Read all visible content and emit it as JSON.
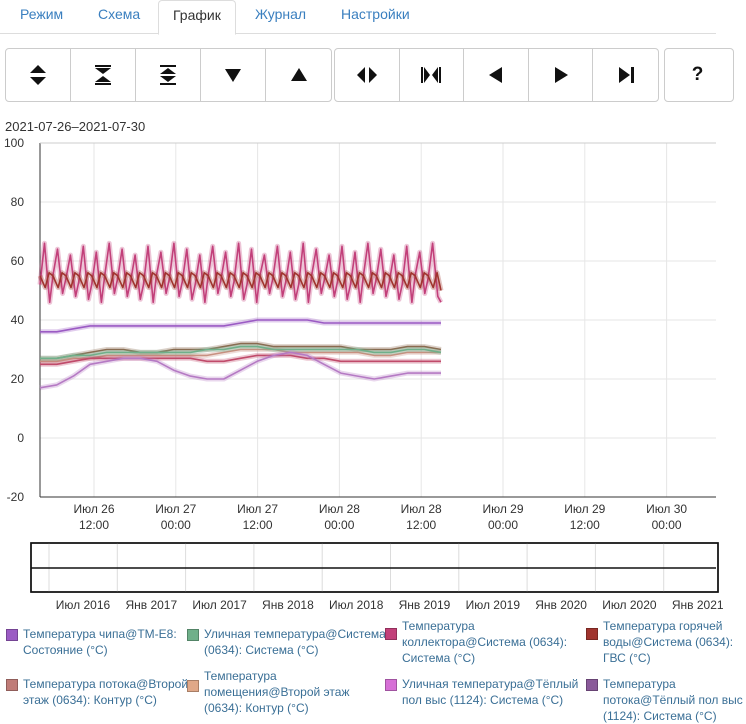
{
  "tabs": [
    {
      "label": "Режим",
      "active": false
    },
    {
      "label": "Схема",
      "active": false
    },
    {
      "label": "График",
      "active": true
    },
    {
      "label": "Журнал",
      "active": false
    },
    {
      "label": "Настройки",
      "active": false
    }
  ],
  "toolbar": {
    "icons": [
      "expand-vertical-icon",
      "compress-vertical-icon",
      "fit-vertical-icon",
      "scroll-down-icon",
      "scroll-up-icon",
      "expand-horizontal-icon",
      "compress-horizontal-icon",
      "scroll-left-icon",
      "scroll-right-icon",
      "scroll-end-icon"
    ],
    "help_label": "?"
  },
  "date_range": "2021-07-26–2021-07-30",
  "chart_data": {
    "type": "line",
    "ylim": [
      -20,
      100
    ],
    "y_ticks": [
      "100",
      "80",
      "60",
      "40",
      "20",
      "0",
      "-20"
    ],
    "x_ticks": [
      {
        "day": "Июл 26",
        "time": "12:00"
      },
      {
        "day": "Июл 27",
        "time": "00:00"
      },
      {
        "day": "Июл 27",
        "time": "12:00"
      },
      {
        "day": "Июл 28",
        "time": "00:00"
      },
      {
        "day": "Июл 28",
        "time": "12:00"
      },
      {
        "day": "Июл 29",
        "time": "00:00"
      },
      {
        "day": "Июл 29",
        "time": "12:00"
      },
      {
        "day": "Июл 30",
        "time": "00:00"
      }
    ],
    "grid": true,
    "series": [
      {
        "name": "Температура коллектора@Система (0634): Система (°C)",
        "color": "#c2407a",
        "shape": "sawtooth",
        "low": 46,
        "high": 66,
        "cycles": 31
      },
      {
        "name": "Температура горячей воды@Система (0634): ГВС (°C)",
        "color": "#a0342e",
        "shape": "wave",
        "low": 50,
        "high": 56,
        "cycles": 31
      },
      {
        "name": "Температура чипа@ТМ-Е8: Состояние (°C)",
        "color": "#9b5bc4",
        "values": [
          36,
          36,
          37,
          38,
          38,
          38,
          38,
          38,
          38,
          38,
          38,
          38,
          39,
          40,
          40,
          40,
          40,
          39,
          39,
          39,
          39,
          39,
          39,
          39,
          39
        ]
      },
      {
        "name": "Температура потока@Второй этаж (0634): Контур (°C)",
        "color": "#8a6a50",
        "values": [
          27,
          27,
          28,
          29,
          30,
          30,
          29,
          29,
          30,
          30,
          30,
          31,
          32,
          32,
          31,
          31,
          31,
          31,
          31,
          30,
          30,
          30,
          31,
          31,
          30
        ]
      },
      {
        "name": "Температура помещения@Второй этаж (0634): Контур (°C)",
        "color": "#c89080",
        "values": [
          26,
          26,
          27,
          27,
          28,
          28,
          28,
          28,
          28,
          28,
          28,
          29,
          30,
          30,
          30,
          29,
          29,
          29,
          29,
          29,
          28,
          28,
          29,
          29,
          29
        ]
      },
      {
        "name": "Уличная температура@Система (0634): Система (°C)",
        "color": "#6fb08a",
        "values": [
          27,
          27,
          28,
          28,
          29,
          29,
          29,
          29,
          29,
          29,
          30,
          30,
          31,
          31,
          30,
          30,
          30,
          30,
          30,
          30,
          29,
          29,
          30,
          30,
          29
        ]
      },
      {
        "name": "Температура потока@Тёплый пол выс (1124): Система (°C)",
        "color": "#c04a6a",
        "values": [
          25,
          25,
          26,
          27,
          27,
          27,
          27,
          27,
          27,
          27,
          26,
          26,
          27,
          28,
          28,
          28,
          27,
          27,
          26,
          26,
          26,
          26,
          26,
          26,
          26
        ]
      },
      {
        "name": "Уличная температура@Тёплый пол выс (1124): Система (°C)",
        "color": "#b57ac4",
        "values": [
          17,
          18,
          21,
          25,
          26,
          27,
          27,
          26,
          23,
          21,
          20,
          20,
          23,
          26,
          28,
          29,
          28,
          25,
          22,
          21,
          20,
          21,
          22,
          22,
          22
        ]
      }
    ]
  },
  "navigator": {
    "ticks": [
      "Июл 2016",
      "Янв 2017",
      "Июл 2017",
      "Янв 2018",
      "Июл 2018",
      "Янв 2019",
      "Июл 2019",
      "Янв 2020",
      "Июл 2020",
      "Янв 2021"
    ]
  },
  "legend": [
    {
      "text": "Температура чипа@ТМ-Е8: Состояние (°C)",
      "color": "#9b5bc4"
    },
    {
      "text": "Уличная температура@Система (0634): Система (°C)",
      "color": "#6fb08a"
    },
    {
      "text": "Температура коллектора@Система (0634): Система (°C)",
      "color": "#c2407a"
    },
    {
      "text": "Температура горячей воды@Система (0634): ГВС (°C)",
      "color": "#a0342e"
    },
    {
      "text": "Температура потока@Второй этаж (0634): Контур (°C)",
      "color": "#c07c78"
    },
    {
      "text": "Температура помещения@Второй этаж (0634): Контур (°C)",
      "color": "#e0a888"
    },
    {
      "text": "Уличная температура@Тёплый пол выс (1124): Система (°C)",
      "color": "#d66fd6"
    },
    {
      "text": "Температура потока@Тёплый пол выс (1124): Система (°C)",
      "color": "#8a5a9a"
    }
  ]
}
